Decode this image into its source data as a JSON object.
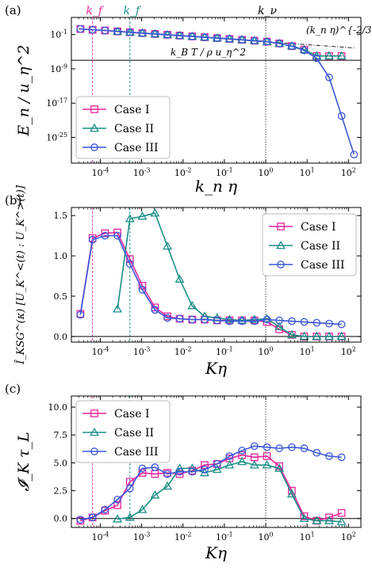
{
  "chart_data": [
    {
      "panel_label": "(a)",
      "type": "line",
      "x_scale": "log",
      "y_scale": "log",
      "xlabel": "k_n η",
      "ylabel": "E_n / u_η^2",
      "xlim": [
        2e-05,
        200
      ],
      "ylim": [
        1e-31,
        1000.0
      ],
      "xticks": [
        0.0001,
        0.001,
        0.01,
        0.1,
        1,
        10,
        100
      ],
      "xtick_labels": [
        "10^-4",
        "10^-3",
        "10^-2",
        "10^-1",
        "10^0",
        "10^1",
        "10^2"
      ],
      "yticks": [
        1e-25,
        1e-17,
        1e-09,
        0.1
      ],
      "ytick_labels": [
        "10^-25",
        "10^-17",
        "10^-9",
        "10^-1"
      ],
      "grid": false,
      "legend_position": "lower-left",
      "series": [
        {
          "name": "Case I",
          "color": "#e8259b",
          "marker": "square",
          "x": [
            3.3e-05,
            6.5e-05,
            0.00013,
            0.00026,
            0.00052,
            0.00104,
            0.0021,
            0.0042,
            0.0083,
            0.0167,
            0.0333,
            0.0667,
            0.133,
            0.267,
            0.533,
            1.07,
            2.13,
            4.27,
            8.53,
            17.1,
            34.1,
            68.3
          ],
          "y": [
            2.0,
            1.3,
            0.9,
            0.55,
            0.35,
            0.22,
            0.14,
            0.09,
            0.058,
            0.037,
            0.024,
            0.015,
            0.0095,
            0.006,
            0.0037,
            0.0022,
            0.00085,
            0.0002,
            3e-05,
            1e-06,
            1e-06,
            1e-06
          ]
        },
        {
          "name": "Case II",
          "color": "#1b8f87",
          "marker": "triangle",
          "x": [
            0.00026,
            0.00052,
            0.00104,
            0.0021,
            0.0042,
            0.0083,
            0.0167,
            0.0333,
            0.0667,
            0.133,
            0.267,
            0.533,
            1.07,
            2.13,
            4.27,
            8.53,
            17.1,
            34.1,
            68.3
          ],
          "y": [
            0.5,
            0.34,
            0.22,
            0.14,
            0.09,
            0.058,
            0.037,
            0.024,
            0.015,
            0.0095,
            0.006,
            0.0037,
            0.0022,
            0.00085,
            0.0002,
            3e-05,
            1e-06,
            1e-06,
            1e-06
          ]
        },
        {
          "name": "Case III",
          "color": "#3a57d6",
          "marker": "circle",
          "x": [
            3.3e-05,
            6.5e-05,
            0.00013,
            0.00026,
            0.00052,
            0.00104,
            0.0021,
            0.0042,
            0.0083,
            0.0167,
            0.0333,
            0.0667,
            0.133,
            0.267,
            0.533,
            1.07,
            2.13,
            4.27,
            8.53,
            17.1,
            34.1,
            68.3,
            136.5
          ],
          "y": [
            2.0,
            1.3,
            0.9,
            0.55,
            0.35,
            0.22,
            0.14,
            0.09,
            0.058,
            0.037,
            0.024,
            0.015,
            0.0095,
            0.006,
            0.0037,
            0.0022,
            0.00085,
            0.0002,
            2e-05,
            3e-07,
            1e-11,
            1e-20,
            1e-29
          ]
        }
      ],
      "reference_lines": {
        "powerlaw_label": "(k_n η)^{-2/3}",
        "thermal_label": "k_B T / ρ u_η^2",
        "thermal_value": 1e-07
      },
      "vlines": [
        {
          "label": "k_f",
          "x": 6.5e-05,
          "color": "#e8259b",
          "style": "dashed"
        },
        {
          "label": "k_f",
          "x": 0.00052,
          "color": "#1b8f87",
          "style": "dashed"
        },
        {
          "label": "k_ν",
          "x": 1.0,
          "color": "#000000",
          "style": "dotted"
        }
      ]
    },
    {
      "panel_label": "(b)",
      "type": "line",
      "x_scale": "log",
      "y_scale": "linear",
      "xlabel": "Kη",
      "ylabel": "Î_KSG^(κ) [U_K^<(t) : U_K^>(t)]",
      "xlim": [
        2e-05,
        200
      ],
      "ylim": [
        -0.07,
        1.6
      ],
      "xticks": [
        0.0001,
        0.001,
        0.01,
        0.1,
        1,
        10,
        100
      ],
      "xtick_labels": [
        "10^-4",
        "10^-3",
        "10^-2",
        "10^-1",
        "10^0",
        "10^1",
        "10^2"
      ],
      "yticks": [
        0.0,
        0.5,
        1.0,
        1.5
      ],
      "ytick_labels": [
        "0.0",
        "0.5",
        "1.0",
        "1.5"
      ],
      "grid": false,
      "legend_position": "top-right",
      "series": [
        {
          "name": "Case I",
          "color": "#e8259b",
          "marker": "square",
          "x": [
            3.3e-05,
            6.5e-05,
            0.00013,
            0.00026,
            0.00052,
            0.00104,
            0.0021,
            0.0042,
            0.0083,
            0.0167,
            0.0333,
            0.0667,
            0.133,
            0.267,
            0.533,
            1.07,
            2.13,
            4.27,
            8.53,
            17.1,
            34.1,
            68.3
          ],
          "y": [
            0.28,
            1.22,
            1.28,
            1.29,
            0.96,
            0.63,
            0.36,
            0.25,
            0.22,
            0.21,
            0.21,
            0.2,
            0.2,
            0.2,
            0.2,
            0.18,
            0.09,
            0.02,
            0.0,
            0.0,
            0.0,
            0.0
          ]
        },
        {
          "name": "Case II",
          "color": "#1b8f87",
          "marker": "triangle",
          "x": [
            0.00026,
            0.00052,
            0.00104,
            0.0021,
            0.0042,
            0.0083,
            0.0167,
            0.0333,
            0.0667,
            0.133,
            0.267,
            0.533,
            1.07,
            2.13,
            4.27,
            8.53,
            17.1,
            34.1,
            68.3
          ],
          "y": [
            0.34,
            1.46,
            1.49,
            1.53,
            1.12,
            0.71,
            0.38,
            0.25,
            0.23,
            0.21,
            0.2,
            0.21,
            0.22,
            0.12,
            0.02,
            0.0,
            0.0,
            0.0,
            0.0
          ]
        },
        {
          "name": "Case III",
          "color": "#3a57d6",
          "marker": "circle",
          "x": [
            3.3e-05,
            6.5e-05,
            0.00013,
            0.00026,
            0.00052,
            0.00104,
            0.0021,
            0.0042,
            0.0083,
            0.0167,
            0.0333,
            0.0667,
            0.133,
            0.267,
            0.533,
            1.07,
            2.13,
            4.27,
            8.53,
            17.1,
            34.1,
            68.3
          ],
          "y": [
            0.27,
            1.2,
            1.25,
            1.25,
            0.9,
            0.58,
            0.33,
            0.23,
            0.22,
            0.21,
            0.21,
            0.2,
            0.19,
            0.19,
            0.19,
            0.21,
            0.2,
            0.19,
            0.18,
            0.17,
            0.16,
            0.15
          ]
        }
      ],
      "vlines": [
        {
          "x": 6.5e-05,
          "color": "#e8259b",
          "style": "dashed"
        },
        {
          "x": 0.00052,
          "color": "#1b8f87",
          "style": "dashed"
        },
        {
          "x": 1.0,
          "color": "#000000",
          "style": "dotted"
        }
      ]
    },
    {
      "panel_label": "(c)",
      "type": "line",
      "x_scale": "log",
      "y_scale": "linear",
      "xlabel": "Kη",
      "ylabel": "𝓘̂_K τ_L",
      "xlim": [
        2e-05,
        200
      ],
      "ylim": [
        -0.8,
        11.0
      ],
      "xticks": [
        0.0001,
        0.001,
        0.01,
        0.1,
        1,
        10,
        100
      ],
      "xtick_labels": [
        "10^-4",
        "10^-3",
        "10^-2",
        "10^-1",
        "10^0",
        "10^1",
        "10^2"
      ],
      "yticks": [
        0.0,
        2.5,
        5.0,
        7.5,
        10.0
      ],
      "ytick_labels": [
        "0.0",
        "2.5",
        "5.0",
        "7.5",
        "10.0"
      ],
      "grid": false,
      "legend_position": "top-left",
      "series": [
        {
          "name": "Case I",
          "color": "#e8259b",
          "marker": "square",
          "x": [
            3.3e-05,
            6.5e-05,
            0.00013,
            0.00026,
            0.00052,
            0.00104,
            0.0021,
            0.0042,
            0.0083,
            0.0167,
            0.0333,
            0.0667,
            0.133,
            0.267,
            0.533,
            1.07,
            2.13,
            4.27,
            8.53,
            17.1,
            34.1,
            68.3
          ],
          "y": [
            -0.2,
            0.1,
            0.7,
            1.2,
            3.3,
            4.1,
            4.0,
            4.1,
            4.0,
            4.3,
            4.8,
            4.9,
            5.4,
            5.7,
            5.5,
            5.6,
            4.7,
            2.5,
            0.2,
            -0.2,
            0.1,
            0.5
          ]
        },
        {
          "name": "Case II",
          "color": "#1b8f87",
          "marker": "triangle",
          "x": [
            0.00026,
            0.00052,
            0.00104,
            0.0021,
            0.0042,
            0.0083,
            0.0167,
            0.0333,
            0.0667,
            0.133,
            0.267,
            0.533,
            1.07,
            2.13,
            4.27,
            8.53,
            17.1,
            34.1,
            68.3
          ],
          "y": [
            -0.05,
            0.1,
            0.8,
            2.1,
            2.9,
            4.5,
            4.5,
            4.1,
            4.4,
            4.8,
            5.1,
            4.8,
            4.8,
            4.5,
            2.2,
            0.0,
            -0.2,
            -0.2,
            -0.3
          ]
        },
        {
          "name": "Case III",
          "color": "#3a57d6",
          "marker": "circle",
          "x": [
            3.3e-05,
            6.5e-05,
            0.00013,
            0.00026,
            0.00052,
            0.00104,
            0.0021,
            0.0042,
            0.0083,
            0.0167,
            0.0333,
            0.0667,
            0.133,
            0.267,
            0.533,
            1.07,
            2.13,
            4.27,
            8.53,
            17.1,
            34.1,
            68.3
          ],
          "y": [
            -0.1,
            0.1,
            0.8,
            1.7,
            2.7,
            4.5,
            4.6,
            4.0,
            4.2,
            4.2,
            4.4,
            4.9,
            5.6,
            6.1,
            6.5,
            6.4,
            6.3,
            6.4,
            6.3,
            5.9,
            5.6,
            5.5
          ]
        }
      ],
      "vlines": [
        {
          "x": 6.5e-05,
          "color": "#e8259b",
          "style": "dashed"
        },
        {
          "x": 0.00052,
          "color": "#1b8f87",
          "style": "dashed"
        },
        {
          "x": 1.0,
          "color": "#000000",
          "style": "dotted"
        }
      ]
    }
  ]
}
